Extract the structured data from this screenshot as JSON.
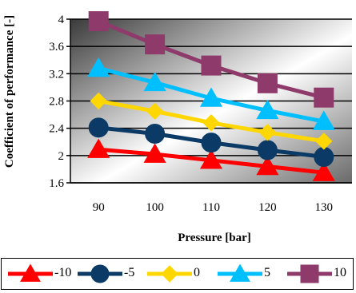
{
  "chart_data": {
    "type": "line",
    "x": [
      90,
      100,
      110,
      120,
      130
    ],
    "xlabel": "Pressure [bar]",
    "ylabel": "Coefficient of performance [-]",
    "ylim": [
      1.6,
      4.0
    ],
    "yticks": [
      "1.6",
      "2",
      "2.4",
      "2.8",
      "3.2",
      "3.6",
      "4"
    ],
    "xticks": [
      "90",
      "100",
      "110",
      "120",
      "130"
    ],
    "grid": "horizontal",
    "legend_position": "bottom",
    "series": [
      {
        "name": "-10",
        "color": "#ff0000",
        "marker": "triangle",
        "values": [
          2.09,
          2.02,
          1.93,
          1.84,
          1.75
        ]
      },
      {
        "name": "-5",
        "color": "#0b3a66",
        "marker": "circle",
        "values": [
          2.41,
          2.32,
          2.19,
          2.08,
          1.98
        ]
      },
      {
        "name": "0",
        "color": "#ffd700",
        "marker": "diamond",
        "values": [
          2.8,
          2.65,
          2.48,
          2.34,
          2.21
        ]
      },
      {
        "name": "5",
        "color": "#00bfff",
        "marker": "triangle",
        "values": [
          3.28,
          3.07,
          2.84,
          2.66,
          2.5
        ]
      },
      {
        "name": "10",
        "color": "#8e3a6a",
        "marker": "square",
        "values": [
          3.97,
          3.63,
          3.32,
          3.06,
          2.85
        ]
      }
    ]
  }
}
